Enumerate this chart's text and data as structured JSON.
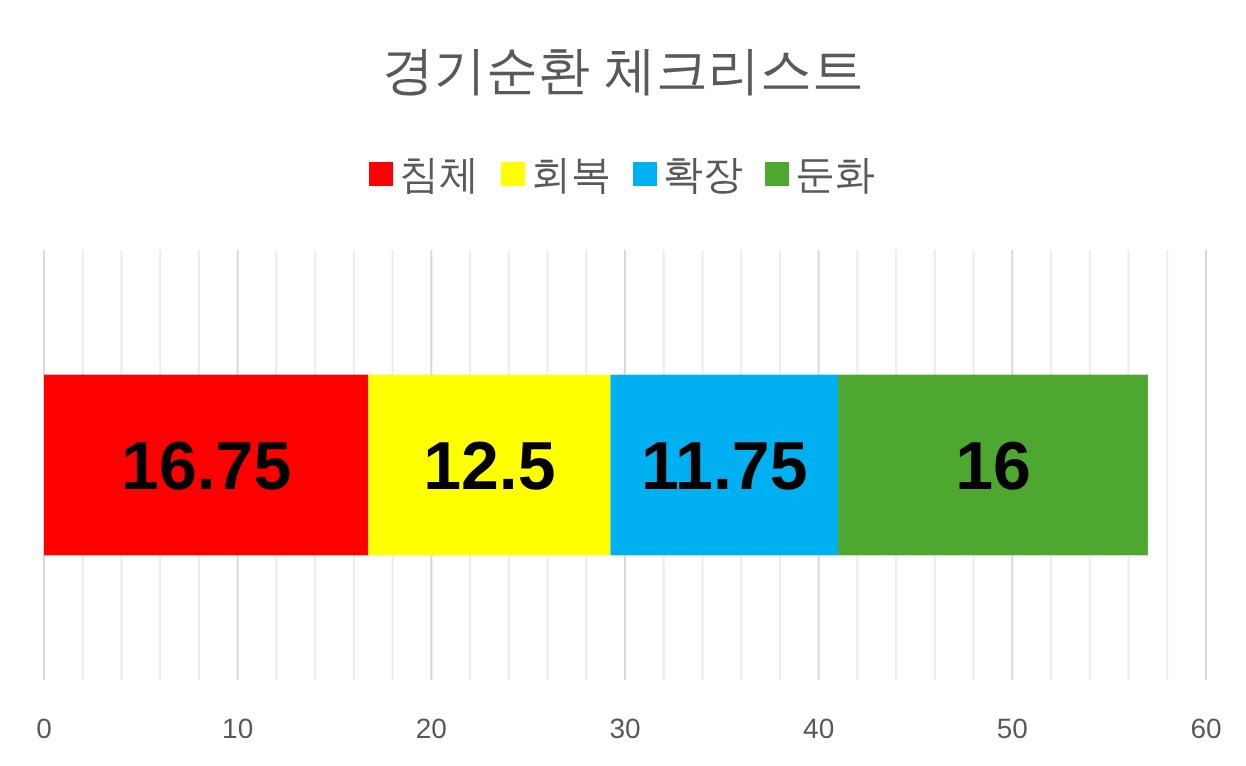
{
  "chart_data": {
    "type": "bar",
    "orientation": "horizontal",
    "stacked": true,
    "title": "경기순환 체크리스트",
    "categories": [
      null
    ],
    "series": [
      {
        "name": "침체",
        "color": "#ff0000",
        "values": [
          16.75
        ]
      },
      {
        "name": "회복",
        "color": "#ffff00",
        "values": [
          12.5
        ]
      },
      {
        "name": "확장",
        "color": "#00b0f0",
        "values": [
          11.75
        ]
      },
      {
        "name": "둔화",
        "color": "#4ea72e",
        "values": [
          16
        ]
      }
    ],
    "xlim": [
      0,
      60
    ],
    "xticks": [
      0,
      10,
      20,
      30,
      40,
      50,
      60
    ],
    "grid": "x",
    "legend": "top",
    "data_labels": true
  }
}
